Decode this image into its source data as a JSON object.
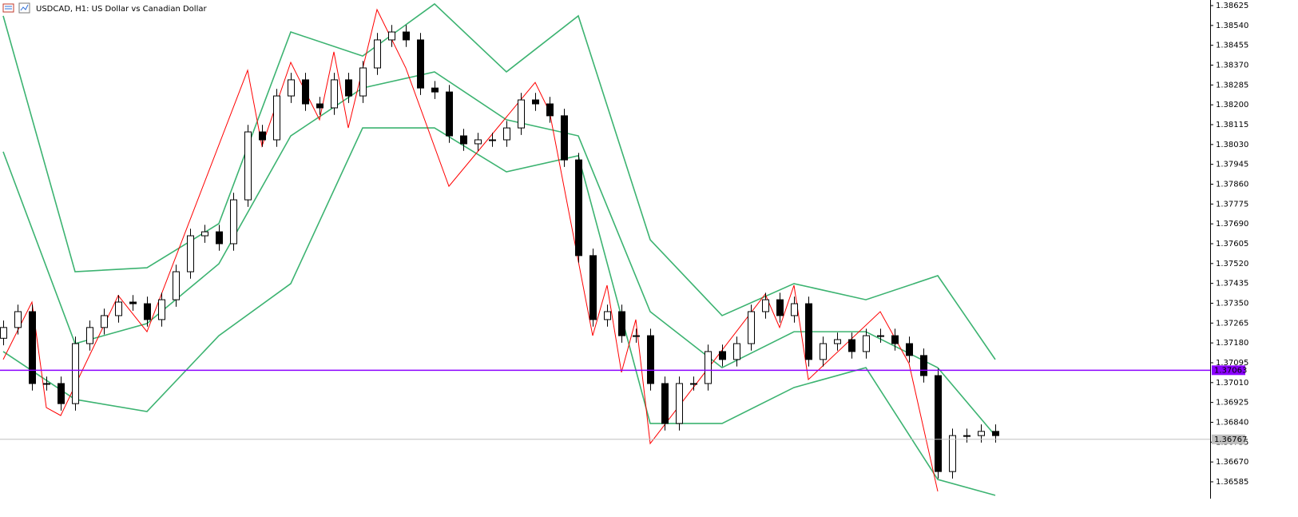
{
  "chart_data": {
    "type": "candlestick",
    "title": "USDCAD, H1:  US Dollar vs Canadian Dollar",
    "up_color": "#ffffff",
    "down_color": "#000000",
    "edge_color": "#000000",
    "open": [
      1.372,
      1.37246,
      1.37314,
      1.37006,
      1.37006,
      1.3692,
      1.37177,
      1.37246,
      1.37297,
      1.37355,
      1.37348,
      1.3728,
      1.37365,
      1.37485,
      1.37639,
      1.37656,
      1.37605,
      1.37793,
      1.38084,
      1.3805,
      1.38238,
      1.38307,
      1.38204,
      1.38187,
      1.38307,
      1.38238,
      1.38358,
      1.38478,
      1.38512,
      1.38478,
      1.38272,
      1.38255,
      1.38067,
      1.38033,
      1.3805,
      1.3805,
      1.38101,
      1.38221,
      1.38204,
      1.38153,
      1.37964,
      1.37554,
      1.3728,
      1.37314,
      1.37211,
      1.37211,
      1.37006,
      1.36835,
      1.37006,
      1.37006,
      1.37143,
      1.37109,
      1.37177,
      1.37314,
      1.37365,
      1.37297,
      1.37348,
      1.37109,
      1.37177,
      1.37194,
      1.37143,
      1.37211,
      1.37211,
      1.37177,
      1.37126,
      1.3704,
      1.36629,
      1.36783,
      1.36783,
      1.36801
    ],
    "high": [
      1.37276,
      1.37344,
      1.37344,
      1.37036,
      1.37036,
      1.37207,
      1.37276,
      1.37327,
      1.37385,
      1.37385,
      1.37378,
      1.37395,
      1.37515,
      1.37669,
      1.37686,
      1.37686,
      1.37823,
      1.38114,
      1.38114,
      1.38268,
      1.38337,
      1.38337,
      1.38234,
      1.38337,
      1.38337,
      1.38388,
      1.38508,
      1.38542,
      1.38542,
      1.38508,
      1.38302,
      1.38285,
      1.38097,
      1.3808,
      1.3808,
      1.38131,
      1.38251,
      1.38251,
      1.38234,
      1.38183,
      1.37994,
      1.37584,
      1.37344,
      1.37344,
      1.37241,
      1.37241,
      1.37036,
      1.37036,
      1.37036,
      1.37173,
      1.37173,
      1.37207,
      1.37344,
      1.37395,
      1.37395,
      1.37378,
      1.37378,
      1.37207,
      1.37224,
      1.37224,
      1.37241,
      1.37241,
      1.37241,
      1.37207,
      1.37156,
      1.3707,
      1.36813,
      1.36813,
      1.36831,
      1.36831
    ],
    "low": [
      1.3717,
      1.37216,
      1.36976,
      1.36976,
      1.3689,
      1.3689,
      1.37147,
      1.37216,
      1.37267,
      1.37318,
      1.3725,
      1.3725,
      1.37335,
      1.37455,
      1.37609,
      1.37575,
      1.37575,
      1.37763,
      1.3802,
      1.3802,
      1.38208,
      1.38174,
      1.38157,
      1.38157,
      1.38208,
      1.38208,
      1.38328,
      1.38448,
      1.38448,
      1.38242,
      1.38225,
      1.38037,
      1.38003,
      1.38003,
      1.3802,
      1.3802,
      1.38071,
      1.38174,
      1.38123,
      1.37934,
      1.37524,
      1.3725,
      1.3725,
      1.37181,
      1.37181,
      1.36976,
      1.36805,
      1.36805,
      1.36976,
      1.36976,
      1.37079,
      1.37079,
      1.37147,
      1.37284,
      1.37267,
      1.37267,
      1.37079,
      1.37079,
      1.37147,
      1.37113,
      1.37113,
      1.37181,
      1.37147,
      1.37096,
      1.3701,
      1.36599,
      1.36599,
      1.36753,
      1.36753,
      1.36753
    ],
    "close": [
      1.37246,
      1.37314,
      1.37006,
      1.37006,
      1.3692,
      1.37177,
      1.37246,
      1.37297,
      1.37355,
      1.37348,
      1.3728,
      1.37365,
      1.37485,
      1.37639,
      1.37656,
      1.37605,
      1.37793,
      1.38084,
      1.3805,
      1.38238,
      1.38307,
      1.38204,
      1.38187,
      1.38307,
      1.38238,
      1.38358,
      1.38478,
      1.38512,
      1.38478,
      1.38272,
      1.38255,
      1.38067,
      1.38033,
      1.3805,
      1.3805,
      1.38101,
      1.38221,
      1.38204,
      1.38153,
      1.37964,
      1.37554,
      1.3728,
      1.37314,
      1.37211,
      1.37211,
      1.37006,
      1.36835,
      1.37006,
      1.37006,
      1.37143,
      1.37109,
      1.37177,
      1.37314,
      1.37365,
      1.37297,
      1.37348,
      1.37109,
      1.37177,
      1.37194,
      1.37143,
      1.37211,
      1.37211,
      1.37177,
      1.37126,
      1.3704,
      1.36629,
      1.36783,
      1.36783,
      1.36801,
      1.36783
    ],
    "series": [
      {
        "color": "#3cb371",
        "x": [
          0,
          5,
          10,
          15,
          20,
          25,
          30,
          35,
          40,
          45,
          50,
          55,
          60,
          65,
          69
        ],
        "values": [
          1.38581,
          1.37485,
          1.37502,
          1.37691,
          1.38512,
          1.38409,
          1.38632,
          1.38341,
          1.38581,
          1.37622,
          1.37297,
          1.37434,
          1.37365,
          1.37468,
          1.37109
        ]
      },
      {
        "color": "#3cb371",
        "x": [
          0,
          5,
          10,
          15,
          20,
          25,
          30,
          35,
          40,
          45,
          50,
          55,
          60,
          65,
          69
        ],
        "values": [
          1.37999,
          1.37177,
          1.37263,
          1.37519,
          1.38067,
          1.38272,
          1.38341,
          1.38136,
          1.38067,
          1.37314,
          1.37074,
          1.37228,
          1.37228,
          1.37074,
          1.36783
        ]
      },
      {
        "color": "#3cb371",
        "x": [
          0,
          5,
          10,
          15,
          20,
          25,
          30,
          35,
          40,
          45,
          50,
          55,
          60,
          65,
          69
        ],
        "values": [
          1.37143,
          1.36938,
          1.36886,
          1.37211,
          1.37434,
          1.38101,
          1.38101,
          1.37913,
          1.37982,
          1.36835,
          1.36835,
          1.36989,
          1.37074,
          1.36595,
          1.36527
        ]
      },
      {
        "color": "#ff0000",
        "x": [
          0,
          2,
          3,
          4,
          8,
          10,
          17,
          18,
          20,
          22,
          23,
          24,
          26,
          28,
          31,
          37,
          38,
          41,
          42,
          43,
          44,
          45,
          53,
          54,
          55,
          56,
          61,
          63,
          65
        ],
        "values": [
          1.37109,
          1.37355,
          1.36903,
          1.36869,
          1.37383,
          1.37228,
          1.38348,
          1.38023,
          1.38382,
          1.38136,
          1.38427,
          1.38101,
          1.38608,
          1.38358,
          1.37851,
          1.38296,
          1.3817,
          1.37211,
          1.37427,
          1.37054,
          1.3728,
          1.36749,
          1.37389,
          1.37246,
          1.37427,
          1.37023,
          1.37314,
          1.37092,
          1.36544
        ]
      }
    ],
    "hlines": [
      {
        "value": 1.37063,
        "color": "#8b00ff"
      },
      {
        "value": 1.36767,
        "color": "#c0c0c0"
      }
    ],
    "ylim": [
      1.36513,
      1.38649
    ],
    "yticks": [
      1.38625,
      {
        "value": 1.3854,
        "label": "1.38540"
      },
      1.38455,
      {
        "value": 1.3837,
        "label": "1.38370"
      },
      1.38285,
      {
        "value": 1.382,
        "label": "1.38200"
      },
      1.38115,
      {
        "value": 1.3803,
        "label": "1.38030"
      },
      1.37945,
      {
        "value": 1.3786,
        "label": "1.37860"
      },
      1.37775,
      {
        "value": 1.3769,
        "label": "1.37690"
      },
      1.37605,
      {
        "value": 1.3752,
        "label": "1.37520"
      },
      1.37435,
      {
        "value": 1.3735,
        "label": "1.37350"
      },
      1.37265,
      {
        "value": 1.3718,
        "label": "1.37180"
      },
      1.37095,
      {
        "value": 1.3701,
        "label": "1.37010"
      },
      1.36925,
      {
        "value": 1.3684,
        "label": "1.36840"
      },
      1.36755,
      {
        "value": 1.3667,
        "label": "1.36670"
      },
      1.36585
    ]
  }
}
